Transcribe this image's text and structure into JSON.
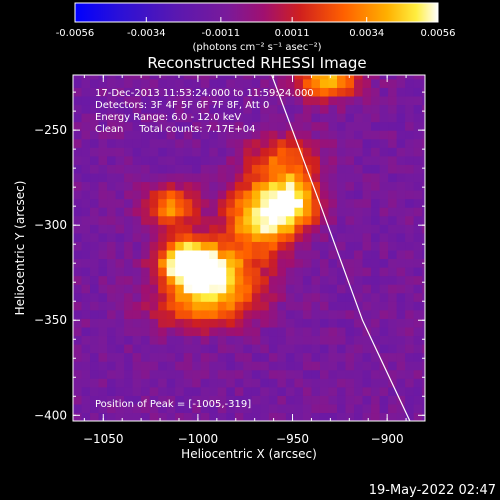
{
  "colorbar": {
    "ticks": [
      "-0.0056",
      "-0.0034",
      "-0.0011",
      "0.0011",
      "0.0034",
      "0.0056"
    ],
    "units": "(photons cm⁻² s⁻¹ asec⁻²)",
    "range": [
      -0.0056,
      0.0056
    ]
  },
  "title": "Reconstructed RHESSI Image",
  "info": {
    "time": "17-Dec-2013 11:53:24.000 to 11:59:24.000",
    "detectors": "Detectors: 3F 4F 5F 6F 7F 8F, Att 0",
    "energy": "Energy Range: 6.0 - 12.0 keV",
    "clean": "Clean     Total counts: 7.17E+04"
  },
  "peak_text": "Position of Peak = [-1005,-319]",
  "footer_date": "19-May-2022 02:47",
  "chart_data": {
    "type": "heatmap",
    "title": "Reconstructed RHESSI Image",
    "xlabel": "Heliocentric X (arcsec)",
    "ylabel": "Heliocentric Y (arcsec)",
    "xlim": [
      -1066,
      -880
    ],
    "ylim": [
      -403,
      -221
    ],
    "xticks": [
      -1050,
      -1000,
      -950,
      -900
    ],
    "yticks": [
      -250,
      -300,
      -350,
      -400
    ],
    "xtick_labels": [
      "−1050",
      "−1000",
      "−950",
      "−900"
    ],
    "ytick_labels": [
      "−250",
      "−300",
      "−350",
      "−400"
    ],
    "colormap": "thermal (blue-purple-red-orange-yellow-white)",
    "grid": false,
    "background_level": -0.0011,
    "sources": [
      {
        "x": -1005,
        "y": -319,
        "peak": 0.0056,
        "sx": 11,
        "sy": 9
      },
      {
        "x": -990,
        "y": -328,
        "peak": 0.0044,
        "sx": 17,
        "sy": 11
      },
      {
        "x": -968,
        "y": -296,
        "peak": 0.0048,
        "sx": 13,
        "sy": 13
      },
      {
        "x": -950,
        "y": -288,
        "peak": 0.0045,
        "sx": 10,
        "sy": 10
      },
      {
        "x": -1015,
        "y": -290,
        "peak": 0.0034,
        "sx": 10,
        "sy": 8
      },
      {
        "x": -955,
        "y": -265,
        "peak": 0.0022,
        "sx": 14,
        "sy": 10
      },
      {
        "x": -1000,
        "y": -345,
        "peak": 0.0018,
        "sx": 20,
        "sy": 8
      },
      {
        "x": -932,
        "y": -224,
        "peak": 0.0045,
        "sx": 12,
        "sy": 7
      }
    ],
    "limb": [
      {
        "x": -961,
        "y": -221
      },
      {
        "x": -935,
        "y": -290
      },
      {
        "x": -913,
        "y": -350
      },
      {
        "x": -888,
        "y": -403
      }
    ],
    "annotations": [
      "17-Dec-2013 11:53:24.000 to 11:59:24.000",
      "Detectors: 3F 4F 5F 6F 7F 8F, Att 0",
      "Energy Range: 6.0 - 12.0 keV",
      "Clean     Total counts: 7.17E+04",
      "Position of Peak = [-1005,-319]"
    ]
  }
}
